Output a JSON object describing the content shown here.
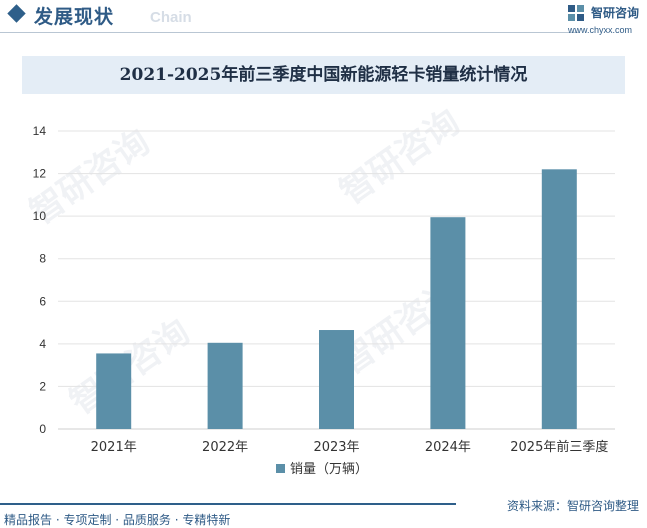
{
  "header": {
    "section_title": "发展现状",
    "section_subtitle": "Chain",
    "brand_name": "智研咨询",
    "brand_url": "www.chyxx.com"
  },
  "watermark_text": "智研咨询",
  "chart_data": {
    "type": "bar",
    "title": "2021-2025年前三季度中国新能源轻卡销量统计情况",
    "categories": [
      "2021年",
      "2022年",
      "2023年",
      "2024年",
      "2025年前三季度"
    ],
    "series": [
      {
        "name": "销量（万辆）",
        "values": [
          3.55,
          4.05,
          4.65,
          9.95,
          12.2
        ]
      }
    ],
    "ylim": [
      0,
      14
    ],
    "yticks": [
      "0",
      "2",
      "4",
      "6",
      "8",
      "10",
      "12",
      "14"
    ],
    "grid": true,
    "legend_position": "bottom",
    "bar_color": "#5b8fa8"
  },
  "footer": {
    "source": "资料来源：智研咨询整理",
    "services": "精品报告 · 专项定制 · 品质服务 · 专精特新"
  }
}
